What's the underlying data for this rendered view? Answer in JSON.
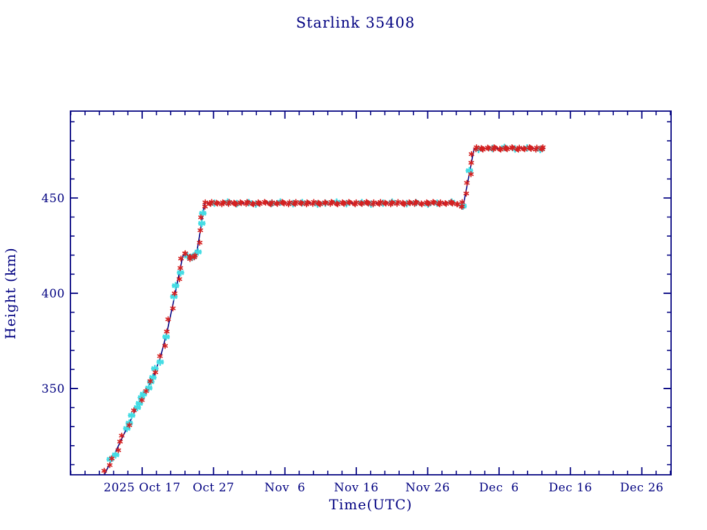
{
  "page": {
    "background": "#ffffff"
  },
  "chart_data": {
    "type": "line",
    "title": "Starlink 35408",
    "xlabel": "Time(UTC)",
    "ylabel": "Height (km)",
    "x_days_origin": "2025-10-17",
    "x_range_days": [
      -10.05,
      74.1
    ],
    "y_range_km": [
      304.7,
      495.6
    ],
    "grid": false,
    "legend": "none",
    "x_major_ticks": [
      {
        "day": 0,
        "label": "2025 Oct 17"
      },
      {
        "day": 10,
        "label": "Oct 27"
      },
      {
        "day": 20,
        "label": "Nov  6"
      },
      {
        "day": 30,
        "label": "Nov 16"
      },
      {
        "day": 40,
        "label": "Nov 26"
      },
      {
        "day": 50,
        "label": "Dec  6"
      },
      {
        "day": 60,
        "label": "Dec 16"
      },
      {
        "day": 70,
        "label": "Dec 26"
      }
    ],
    "x_minor_tick_step_days": 2,
    "y_major_ticks": [
      {
        "km": 350,
        "label": "350"
      },
      {
        "km": 400,
        "label": "400"
      },
      {
        "km": 450,
        "label": "450"
      }
    ],
    "y_minor_tick_step_km": 10,
    "track_day_height_km": [
      [
        -5.3,
        304.7
      ],
      [
        -4.4,
        311.5
      ],
      [
        -3.0,
        322.5
      ],
      [
        -1.6,
        333.5
      ],
      [
        -0.6,
        341.5
      ],
      [
        0.5,
        348.5
      ],
      [
        1.5,
        355.5
      ],
      [
        2.6,
        367
      ],
      [
        3.5,
        380
      ],
      [
        4.3,
        394
      ],
      [
        5.0,
        407
      ],
      [
        5.7,
        419.5
      ],
      [
        6.1,
        421
      ],
      [
        6.6,
        418.5
      ],
      [
        7.4,
        419
      ],
      [
        7.7,
        422.5
      ],
      [
        8.2,
        434
      ],
      [
        8.75,
        447.3
      ],
      [
        44.0,
        447.3
      ],
      [
        44.6,
        445.4
      ],
      [
        45.0,
        446.2
      ],
      [
        46.5,
        476
      ],
      [
        56.5,
        476
      ]
    ],
    "red_marker_days": [
      -5.1,
      -4.65,
      -4.15,
      -3.55,
      -3.1,
      -2.65,
      -1.9,
      -1.05,
      -0.25,
      0.55,
      1.35,
      1.75,
      2.6,
      3.0,
      3.45,
      3.85,
      4.2,
      4.65,
      5.0,
      5.35,
      5.65,
      5.9,
      6.15,
      6.45,
      6.7,
      6.95,
      7.2,
      7.5,
      7.85,
      8.15,
      8.45,
      8.7,
      8.95,
      9.25,
      9.6,
      9.95,
      10.3,
      10.65,
      10.95,
      11.3,
      11.65,
      12.0,
      12.3,
      12.65,
      13.0,
      13.35,
      13.65,
      14.0,
      14.35,
      14.7,
      15.0,
      15.35,
      15.7,
      16.05,
      16.35,
      16.7,
      17.05,
      17.4,
      17.7,
      18.05,
      18.4,
      18.75,
      19.05,
      19.4,
      19.75,
      20.1,
      20.4,
      20.75,
      21.1,
      21.45,
      21.75,
      22.1,
      22.45,
      22.8,
      23.1,
      23.45,
      23.8,
      24.15,
      24.45,
      24.8,
      25.15,
      25.5,
      25.8,
      26.15,
      26.5,
      26.85,
      27.15,
      27.5,
      27.85,
      28.2,
      28.5,
      28.85,
      29.2,
      29.55,
      29.85,
      30.2,
      30.55,
      30.9,
      31.2,
      31.55,
      31.9,
      32.25,
      32.55,
      32.9,
      33.25,
      33.6,
      33.9,
      34.25,
      34.6,
      34.95,
      35.25,
      35.6,
      35.95,
      36.3,
      36.6,
      36.95,
      37.3,
      37.65,
      37.95,
      38.3,
      38.65,
      39.0,
      39.3,
      39.65,
      40.0,
      40.35,
      40.65,
      41.0,
      41.35,
      41.7,
      42.0,
      42.35,
      42.7,
      43.05,
      43.35,
      43.7,
      44.0,
      44.3,
      44.55,
      44.8,
      45.05,
      45.3,
      45.6,
      45.85,
      46.1,
      46.35,
      46.65,
      46.95,
      47.3,
      47.65,
      47.95,
      48.3,
      48.65,
      49.0,
      49.3,
      49.65,
      50.0,
      50.35,
      50.65,
      51.0,
      51.35,
      51.7,
      52.0,
      52.35,
      52.7,
      53.05,
      53.35,
      53.7,
      54.05,
      54.4,
      54.7,
      55.05,
      55.4,
      55.75,
      56.05,
      56.35
    ],
    "cyan_marker_days": [
      -4.3,
      -3.9,
      -2.2,
      -1.75,
      -1.3,
      -0.85,
      -0.45,
      -0.05,
      0.35,
      0.75,
      1.15,
      1.55,
      1.95,
      2.35,
      3.3,
      4.5,
      4.85,
      5.2,
      6.3,
      7.05,
      7.35,
      7.65,
      8.3,
      8.55,
      10.3,
      11.8,
      13.2,
      15.0,
      16.1,
      18.0,
      19.3,
      21.2,
      22.6,
      24.4,
      25.6,
      27.3,
      28.8,
      30.6,
      32.0,
      33.8,
      35.2,
      36.9,
      38.3,
      40.1,
      41.5,
      43.2,
      44.9,
      45.9,
      47.3,
      48.9,
      50.7,
      52.3,
      54.1,
      55.6
    ],
    "colors": {
      "axis": "#000080",
      "text": "#000080",
      "track_line": "#000080",
      "red_marker": "#d42020",
      "cyan_marker": "#45dce4",
      "background": "#ffffff"
    }
  }
}
